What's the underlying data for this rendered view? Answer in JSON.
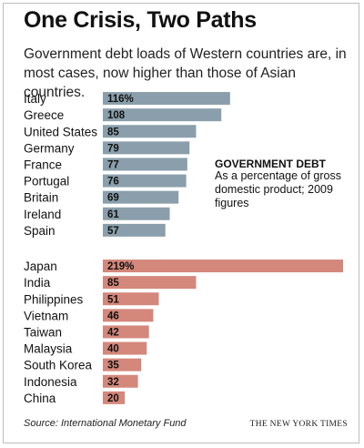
{
  "header": {
    "title": "One Crisis, Two Paths",
    "subtitle": "Government debt loads of Western countries are, in most cases, now higher than those of Asian countries."
  },
  "annotation": {
    "heading": "GOVERNMENT DEBT",
    "body": "As a percentage of gross domestic product; 2009 figures"
  },
  "footer": {
    "source": "Source: International Monetary Fund",
    "credit": "THE NEW YORK TIMES"
  },
  "colors": {
    "western": "#8a9fab",
    "asian": "#d4877b"
  },
  "chart_data": {
    "type": "bar",
    "orientation": "horizontal",
    "title": "One Crisis, Two Paths",
    "xlim": [
      0,
      219
    ],
    "grid": false,
    "groups": [
      {
        "color": "#8a9fab",
        "categories": [
          "Italy",
          "Greece",
          "United States",
          "Germany",
          "France",
          "Portugal",
          "Britain",
          "Ireland",
          "Spain"
        ],
        "values": [
          116,
          108,
          85,
          79,
          77,
          76,
          69,
          61,
          57
        ],
        "labels": [
          "116%",
          "108",
          "85",
          "79",
          "77",
          "76",
          "69",
          "61",
          "57"
        ]
      },
      {
        "color": "#d4877b",
        "categories": [
          "Japan",
          "India",
          "Philippines",
          "Vietnam",
          "Taiwan",
          "Malaysia",
          "South Korea",
          "Indonesia",
          "China"
        ],
        "values": [
          219,
          85,
          51,
          46,
          42,
          40,
          35,
          32,
          20
        ],
        "labels": [
          "219%",
          "85",
          "51",
          "46",
          "42",
          "40",
          "35",
          "32",
          "20"
        ]
      }
    ]
  }
}
